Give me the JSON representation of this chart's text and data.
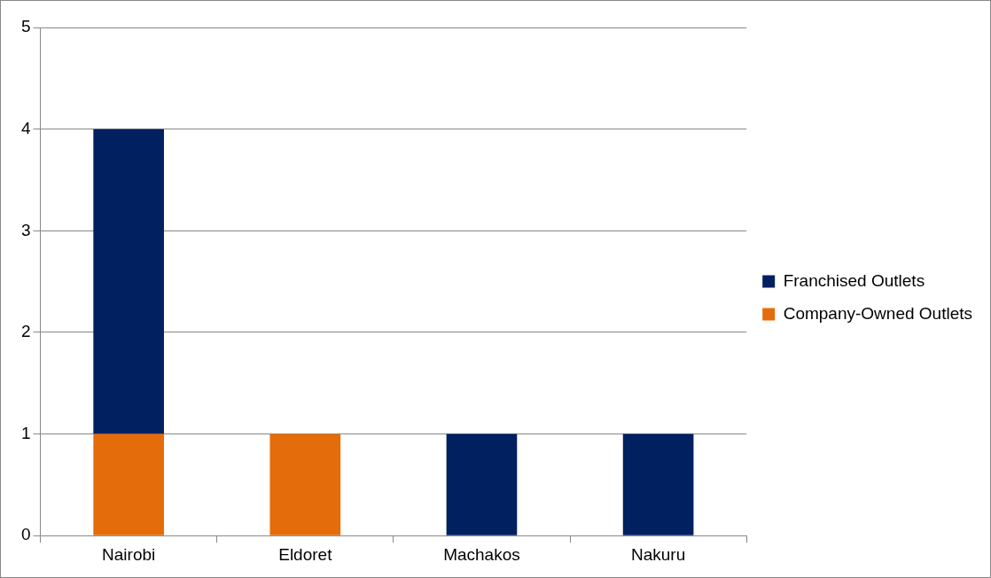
{
  "chart_data": {
    "type": "bar",
    "categories": [
      "Nairobi",
      "Eldoret",
      "Machakos",
      "Nakuru"
    ],
    "stacked": true,
    "series": [
      {
        "name": "Company-Owned Outlets",
        "color": "#e46c0a",
        "values": [
          1,
          1,
          0,
          0
        ]
      },
      {
        "name": "Franchised Outlets",
        "color": "#002060",
        "values": [
          3,
          0,
          1,
          1
        ]
      }
    ],
    "ylim": [
      0,
      5
    ],
    "yticks": [
      0,
      1,
      2,
      3,
      4,
      5
    ],
    "grid": "y",
    "legend": "right"
  }
}
